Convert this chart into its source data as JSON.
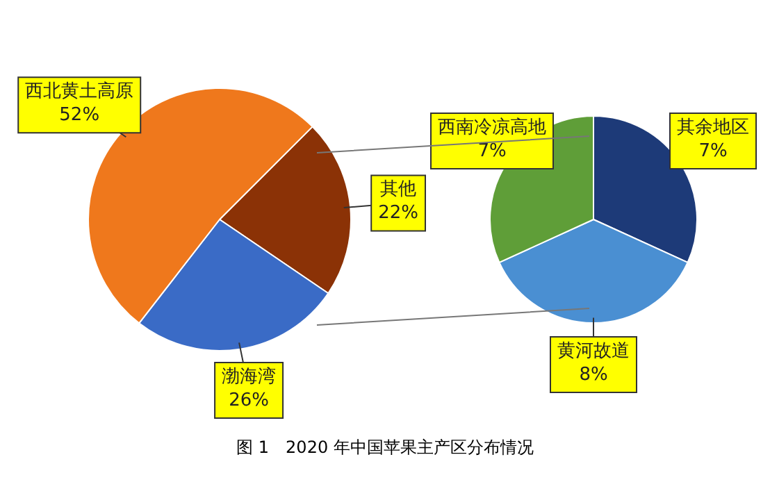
{
  "chart_data": [
    {
      "type": "pie",
      "categories": [
        "其他",
        "渤海湾",
        "西北黄土高原"
      ],
      "values": [
        22,
        26,
        52
      ],
      "colors": [
        "#8b3206",
        "#3a6bc6",
        "#ef781c"
      ],
      "value_labels": [
        "22%",
        "26%",
        "52%"
      ],
      "annotations": [
        "图 1　2020 年中国苹果主产区分布情况"
      ]
    },
    {
      "type": "pie",
      "categories": [
        "其余地区",
        "黄河故道",
        "西南冷凉高地"
      ],
      "values": [
        7,
        8,
        7
      ],
      "colors": [
        "#1d3a78",
        "#4a8fd2",
        "#5f9e38"
      ],
      "value_labels": [
        "7%",
        "8%",
        "7%"
      ]
    }
  ]
}
